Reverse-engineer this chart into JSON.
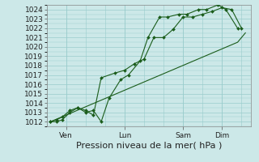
{
  "bg_color": "#cce8e8",
  "grid_color": "#99cccc",
  "line_color": "#1a5c1a",
  "marker_color": "#1a5c1a",
  "title": "Pression niveau de la mer( hPa )",
  "ylim": [
    1011.5,
    1024.5
  ],
  "yticks": [
    1012,
    1013,
    1014,
    1015,
    1016,
    1017,
    1018,
    1019,
    1020,
    1021,
    1022,
    1023,
    1024
  ],
  "xtick_labels": [
    "Ven",
    "Lun",
    "Sam",
    "Dim"
  ],
  "xtick_positions": [
    1,
    4,
    7,
    9
  ],
  "xlim": [
    0,
    10.5
  ],
  "series1_x": [
    0.2,
    0.5,
    0.8,
    1.2,
    1.6,
    2.0,
    2.4,
    2.8,
    3.5,
    4.0,
    4.5,
    5.0,
    5.5,
    6.0,
    6.5,
    7.0,
    7.5,
    8.0,
    8.5,
    9.0,
    9.5,
    10.0
  ],
  "series1_y": [
    1012.0,
    1012.0,
    1012.2,
    1013.0,
    1013.5,
    1013.2,
    1012.7,
    1016.7,
    1017.2,
    1017.5,
    1018.2,
    1018.7,
    1021.0,
    1021.0,
    1021.9,
    1023.2,
    1023.2,
    1023.5,
    1023.8,
    1024.2,
    1024.0,
    1022.0
  ],
  "series2_x": [
    0.2,
    0.5,
    0.8,
    1.2,
    1.6,
    2.0,
    2.4,
    2.8,
    3.2,
    3.8,
    4.2,
    4.8,
    5.2,
    5.8,
    6.2,
    6.8,
    7.2,
    7.8,
    8.2,
    8.8,
    9.2,
    9.8
  ],
  "series2_y": [
    1012.0,
    1012.2,
    1012.5,
    1013.2,
    1013.5,
    1013.0,
    1013.2,
    1012.0,
    1014.5,
    1016.5,
    1017.0,
    1018.5,
    1021.0,
    1023.2,
    1023.2,
    1023.5,
    1023.5,
    1024.0,
    1024.0,
    1024.5,
    1024.0,
    1022.0
  ],
  "series3_x": [
    0.2,
    9.8,
    10.2
  ],
  "series3_y": [
    1012.0,
    1020.5,
    1021.5
  ],
  "fontsize": 6.5,
  "title_fontsize": 8.0
}
